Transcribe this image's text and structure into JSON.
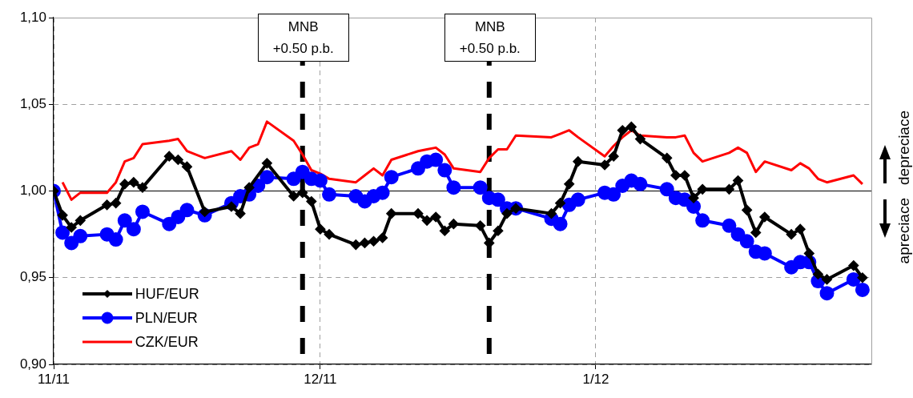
{
  "chart_data": {
    "type": "line",
    "xlim": [
      "2011-11-01",
      "2012-02-01"
    ],
    "xticks": [
      {
        "value": "2011-11-01",
        "label": "11/11"
      },
      {
        "value": "2011-12-01",
        "label": "12/11"
      },
      {
        "value": "2012-01-01",
        "label": "1/12"
      }
    ],
    "ylim": [
      0.9,
      1.1
    ],
    "yticks": [
      {
        "value": 0.9,
        "label": "0,90"
      },
      {
        "value": 0.95,
        "label": "0,95"
      },
      {
        "value": 1.0,
        "label": "1,00"
      },
      {
        "value": 1.05,
        "label": "1,05"
      },
      {
        "value": 1.1,
        "label": "1,10"
      }
    ],
    "grid": true,
    "legend": "bottom left",
    "line_style": "solid",
    "series": [
      {
        "name": "HUF/EUR",
        "color": "#000000",
        "marker": "diamond",
        "x": [
          "2011-11-01",
          "2011-11-02",
          "2011-11-03",
          "2011-11-04",
          "2011-11-07",
          "2011-11-08",
          "2011-11-09",
          "2011-11-10",
          "2011-11-11",
          "2011-11-14",
          "2011-11-15",
          "2011-11-16",
          "2011-11-18",
          "2011-11-21",
          "2011-11-22",
          "2011-11-23",
          "2011-11-25",
          "2011-11-28",
          "2011-11-29",
          "2011-11-30",
          "2011-12-01",
          "2011-12-02",
          "2011-12-05",
          "2011-12-06",
          "2011-12-07",
          "2011-12-08",
          "2011-12-09",
          "2011-12-12",
          "2011-12-13",
          "2011-12-14",
          "2011-12-15",
          "2011-12-16",
          "2011-12-19",
          "2011-12-20",
          "2011-12-21",
          "2011-12-22",
          "2011-12-23",
          "2011-12-27",
          "2011-12-28",
          "2011-12-29",
          "2011-12-30",
          "2012-01-02",
          "2012-01-03",
          "2012-01-04",
          "2012-01-05",
          "2012-01-06",
          "2012-01-09",
          "2012-01-10",
          "2012-01-11",
          "2012-01-12",
          "2012-01-13",
          "2012-01-16",
          "2012-01-17",
          "2012-01-18",
          "2012-01-19",
          "2012-01-20",
          "2012-01-23",
          "2012-01-24",
          "2012-01-25",
          "2012-01-26",
          "2012-01-27",
          "2012-01-30",
          "2012-01-31"
        ],
        "values": [
          1.0,
          0.986,
          0.979,
          0.983,
          0.992,
          0.993,
          1.004,
          1.005,
          1.002,
          1.02,
          1.018,
          1.014,
          0.988,
          0.991,
          0.987,
          1.002,
          1.016,
          0.997,
          0.999,
          0.994,
          0.978,
          0.975,
          0.969,
          0.97,
          0.971,
          0.973,
          0.987,
          0.987,
          0.983,
          0.985,
          0.977,
          0.981,
          0.98,
          0.97,
          0.977,
          0.987,
          0.99,
          0.987,
          0.993,
          1.004,
          1.017,
          1.015,
          1.02,
          1.035,
          1.037,
          1.03,
          1.019,
          1.009,
          1.009,
          0.996,
          1.001,
          1.001,
          1.006,
          0.989,
          0.976,
          0.985,
          0.975,
          0.978,
          0.964,
          0.952,
          0.949,
          0.957,
          0.95
        ]
      },
      {
        "name": "PLN/EUR",
        "color": "#0000ff",
        "marker": "circle",
        "x": [
          "2011-11-01",
          "2011-11-02",
          "2011-11-03",
          "2011-11-04",
          "2011-11-07",
          "2011-11-08",
          "2011-11-09",
          "2011-11-10",
          "2011-11-11",
          "2011-11-14",
          "2011-11-15",
          "2011-11-16",
          "2011-11-18",
          "2011-11-21",
          "2011-11-22",
          "2011-11-23",
          "2011-11-24",
          "2011-11-25",
          "2011-11-28",
          "2011-11-29",
          "2011-11-30",
          "2011-12-01",
          "2011-12-02",
          "2011-12-05",
          "2011-12-06",
          "2011-12-07",
          "2011-12-08",
          "2011-12-09",
          "2011-12-12",
          "2011-12-13",
          "2011-12-14",
          "2011-12-15",
          "2011-12-16",
          "2011-12-19",
          "2011-12-20",
          "2011-12-21",
          "2011-12-22",
          "2011-12-23",
          "2011-12-27",
          "2011-12-28",
          "2011-12-29",
          "2011-12-30",
          "2012-01-02",
          "2012-01-03",
          "2012-01-04",
          "2012-01-05",
          "2012-01-06",
          "2012-01-09",
          "2012-01-10",
          "2012-01-11",
          "2012-01-12",
          "2012-01-13",
          "2012-01-16",
          "2012-01-17",
          "2012-01-18",
          "2012-01-19",
          "2012-01-20",
          "2012-01-23",
          "2012-01-24",
          "2012-01-25",
          "2012-01-26",
          "2012-01-27",
          "2012-01-30",
          "2012-01-31"
        ],
        "values": [
          1.0,
          0.976,
          0.97,
          0.974,
          0.975,
          0.972,
          0.983,
          0.978,
          0.988,
          0.981,
          0.985,
          0.989,
          0.986,
          0.993,
          0.997,
          0.998,
          1.003,
          1.008,
          1.007,
          1.011,
          1.007,
          1.006,
          0.998,
          0.997,
          0.994,
          0.997,
          0.999,
          1.008,
          1.013,
          1.017,
          1.018,
          1.012,
          1.002,
          1.002,
          0.996,
          0.995,
          0.99,
          0.99,
          0.984,
          0.981,
          0.992,
          0.995,
          0.999,
          0.998,
          1.003,
          1.006,
          1.004,
          1.001,
          0.996,
          0.995,
          0.991,
          0.983,
          0.98,
          0.975,
          0.971,
          0.965,
          0.964,
          0.956,
          0.959,
          0.959,
          0.948,
          0.941,
          0.949,
          0.943
        ]
      },
      {
        "name": "CZK/EUR",
        "color": "#ff0000",
        "marker": "none",
        "x": [
          "2011-11-02",
          "2011-11-03",
          "2011-11-04",
          "2011-11-07",
          "2011-11-08",
          "2011-11-09",
          "2011-11-10",
          "2011-11-11",
          "2011-11-14",
          "2011-11-15",
          "2011-11-16",
          "2011-11-18",
          "2011-11-21",
          "2011-11-22",
          "2011-11-23",
          "2011-11-24",
          "2011-11-25",
          "2011-11-28",
          "2011-11-29",
          "2011-11-30",
          "2011-12-01",
          "2011-12-02",
          "2011-12-05",
          "2011-12-06",
          "2011-12-07",
          "2011-12-08",
          "2011-12-09",
          "2011-12-12",
          "2011-12-13",
          "2011-12-14",
          "2011-12-15",
          "2011-12-16",
          "2011-12-19",
          "2011-12-20",
          "2011-12-21",
          "2011-12-22",
          "2011-12-23",
          "2011-12-27",
          "2011-12-28",
          "2011-12-29",
          "2011-12-30",
          "2012-01-02",
          "2012-01-03",
          "2012-01-04",
          "2012-01-05",
          "2012-01-06",
          "2012-01-09",
          "2012-01-10",
          "2012-01-11",
          "2012-01-12",
          "2012-01-13",
          "2012-01-16",
          "2012-01-17",
          "2012-01-18",
          "2012-01-19",
          "2012-01-20",
          "2012-01-23",
          "2012-01-24",
          "2012-01-25",
          "2012-01-26",
          "2012-01-27",
          "2012-01-30",
          "2012-01-31"
        ],
        "values": [
          1.005,
          0.995,
          0.999,
          0.999,
          1.005,
          1.017,
          1.019,
          1.027,
          1.029,
          1.03,
          1.023,
          1.019,
          1.023,
          1.018,
          1.025,
          1.027,
          1.04,
          1.029,
          1.021,
          1.012,
          1.01,
          1.007,
          1.005,
          1.009,
          1.013,
          1.009,
          1.018,
          1.023,
          1.024,
          1.025,
          1.021,
          1.013,
          1.011,
          1.019,
          1.024,
          1.024,
          1.032,
          1.031,
          1.033,
          1.035,
          1.031,
          1.02,
          1.026,
          1.031,
          1.035,
          1.032,
          1.031,
          1.031,
          1.032,
          1.022,
          1.017,
          1.022,
          1.025,
          1.022,
          1.011,
          1.017,
          1.012,
          1.016,
          1.013,
          1.007,
          1.005,
          1.009,
          1.004
        ]
      }
    ],
    "ref_lines": [
      {
        "axis": "y",
        "value": 1.0,
        "color": "#000000",
        "line_style": "solid"
      },
      {
        "axis": "x",
        "value": "2011-11-29",
        "label": "MNB +0.50 p.b.",
        "color": "#000000",
        "line_style": "dashed"
      },
      {
        "axis": "x",
        "value": "2011-12-20",
        "label": "MNB +0.50 p.b.",
        "color": "#000000",
        "line_style": "dashed"
      }
    ],
    "annotations": [
      "depreciace",
      "apreciace"
    ]
  }
}
